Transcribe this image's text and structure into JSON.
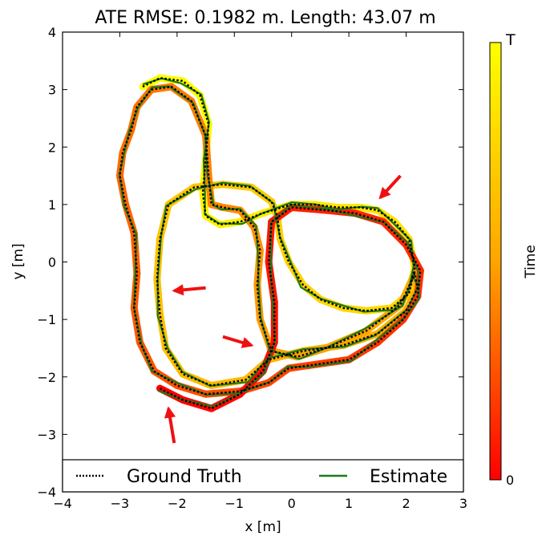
{
  "chart_data": {
    "type": "line",
    "title": "ATE RMSE: 0.1982 m.  Length: 43.07 m",
    "xlabel": "x [m]",
    "ylabel": "y [m]",
    "xlim": [
      -4,
      3
    ],
    "ylim": [
      -4,
      4
    ],
    "xticks": [
      "−4",
      "−3",
      "−2",
      "−1",
      "0",
      "1",
      "2",
      "3"
    ],
    "yticks": [
      "−4",
      "−3",
      "−2",
      "−1",
      "0",
      "1",
      "2",
      "3",
      "4"
    ],
    "grid": false,
    "legend_position": "bottom",
    "colorbar": {
      "label": "Time",
      "top_label": "T",
      "bottom_label": "0",
      "colormap": [
        "#ffff00",
        "#ffa500",
        "#ff0000"
      ]
    },
    "series": [
      {
        "name": "Ground Truth",
        "style": "dotted",
        "color": "#000000",
        "points": [
          [
            -2.6,
            3.05
          ],
          [
            -2.3,
            3.2
          ],
          [
            -1.9,
            3.15
          ],
          [
            -1.6,
            2.9
          ],
          [
            -1.45,
            2.4
          ],
          [
            -1.5,
            1.8
          ],
          [
            -1.55,
            1.2
          ],
          [
            -1.5,
            0.8
          ],
          [
            -1.25,
            0.65
          ],
          [
            -0.9,
            0.7
          ],
          [
            -0.5,
            0.85
          ],
          [
            0,
            1.0
          ],
          [
            0.4,
            1.0
          ],
          [
            0.8,
            0.95
          ],
          [
            1.2,
            0.95
          ],
          [
            1.5,
            0.9
          ],
          [
            1.8,
            0.7
          ],
          [
            2.05,
            0.4
          ],
          [
            2.15,
            -0.1
          ],
          [
            2.05,
            -0.55
          ],
          [
            1.75,
            -0.8
          ],
          [
            1.3,
            -0.85
          ],
          [
            0.9,
            -0.8
          ],
          [
            0.5,
            -0.65
          ],
          [
            0.2,
            -0.4
          ],
          [
            -0.05,
            0.0
          ],
          [
            -0.2,
            0.4
          ],
          [
            -0.25,
            0.8
          ],
          [
            -0.35,
            1.05
          ],
          [
            -0.7,
            1.3
          ],
          [
            -1.2,
            1.35
          ],
          [
            -1.7,
            1.3
          ],
          [
            -2.15,
            1.0
          ],
          [
            -2.3,
            0.4
          ],
          [
            -2.35,
            -0.3
          ],
          [
            -2.3,
            -0.9
          ],
          [
            -2.2,
            -1.5
          ],
          [
            -1.9,
            -1.95
          ],
          [
            -1.4,
            -2.15
          ],
          [
            -0.8,
            -2.05
          ],
          [
            -0.4,
            -1.7
          ],
          [
            0.2,
            -1.55
          ],
          [
            0.9,
            -1.45
          ],
          [
            1.5,
            -1.25
          ],
          [
            2.0,
            -0.85
          ],
          [
            2.2,
            -0.45
          ],
          [
            2.15,
            -0.2
          ],
          [
            1.9,
            -0.75
          ],
          [
            1.3,
            -1.2
          ],
          [
            0.6,
            -1.5
          ],
          [
            0.1,
            -1.65
          ],
          [
            -0.35,
            -1.55
          ],
          [
            -0.55,
            -1.0
          ],
          [
            -0.6,
            -0.4
          ],
          [
            -0.55,
            0.2
          ],
          [
            -0.65,
            0.6
          ],
          [
            -0.9,
            0.9
          ],
          [
            -1.2,
            0.95
          ],
          [
            -1.4,
            1.0
          ],
          [
            -1.45,
            1.5
          ],
          [
            -1.5,
            2.2
          ],
          [
            -1.75,
            2.8
          ],
          [
            -2.1,
            3.05
          ],
          [
            -2.45,
            3.0
          ],
          [
            -2.7,
            2.7
          ],
          [
            -2.8,
            2.3
          ],
          [
            -2.95,
            1.9
          ],
          [
            -3.0,
            1.5
          ],
          [
            -2.9,
            1.0
          ],
          [
            -2.75,
            0.5
          ],
          [
            -2.7,
            -0.2
          ],
          [
            -2.75,
            -0.8
          ],
          [
            -2.65,
            -1.4
          ],
          [
            -2.4,
            -1.9
          ],
          [
            -2.0,
            -2.15
          ],
          [
            -1.5,
            -2.3
          ],
          [
            -0.9,
            -2.25
          ],
          [
            -0.4,
            -2.1
          ],
          [
            -0.05,
            -1.85
          ],
          [
            0.3,
            -1.8
          ],
          [
            1.0,
            -1.7
          ],
          [
            1.5,
            -1.4
          ],
          [
            1.95,
            -1.0
          ],
          [
            2.2,
            -0.6
          ],
          [
            2.25,
            -0.15
          ],
          [
            2.0,
            0.3
          ],
          [
            1.6,
            0.7
          ],
          [
            1.1,
            0.85
          ],
          [
            0.6,
            0.9
          ],
          [
            0.0,
            0.95
          ],
          [
            -0.35,
            0.7
          ],
          [
            -0.4,
            0.0
          ],
          [
            -0.3,
            -0.7
          ],
          [
            -0.3,
            -1.4
          ],
          [
            -0.5,
            -1.9
          ],
          [
            -0.9,
            -2.3
          ],
          [
            -1.4,
            -2.55
          ],
          [
            -1.9,
            -2.4
          ],
          [
            -2.3,
            -2.2
          ]
        ]
      },
      {
        "name": "Estimate",
        "style": "solid",
        "color": "#1a7a1a"
      }
    ],
    "annotations": [
      {
        "type": "arrow",
        "from": [
          1.9,
          1.5
        ],
        "to": [
          1.55,
          1.12
        ]
      },
      {
        "type": "arrow",
        "from": [
          -1.5,
          -0.45
        ],
        "to": [
          -2.05,
          -0.5
        ]
      },
      {
        "type": "arrow",
        "from": [
          -1.2,
          -1.3
        ],
        "to": [
          -0.7,
          -1.45
        ]
      },
      {
        "type": "arrow",
        "from": [
          -2.05,
          -3.15
        ],
        "to": [
          -2.15,
          -2.55
        ]
      }
    ]
  }
}
